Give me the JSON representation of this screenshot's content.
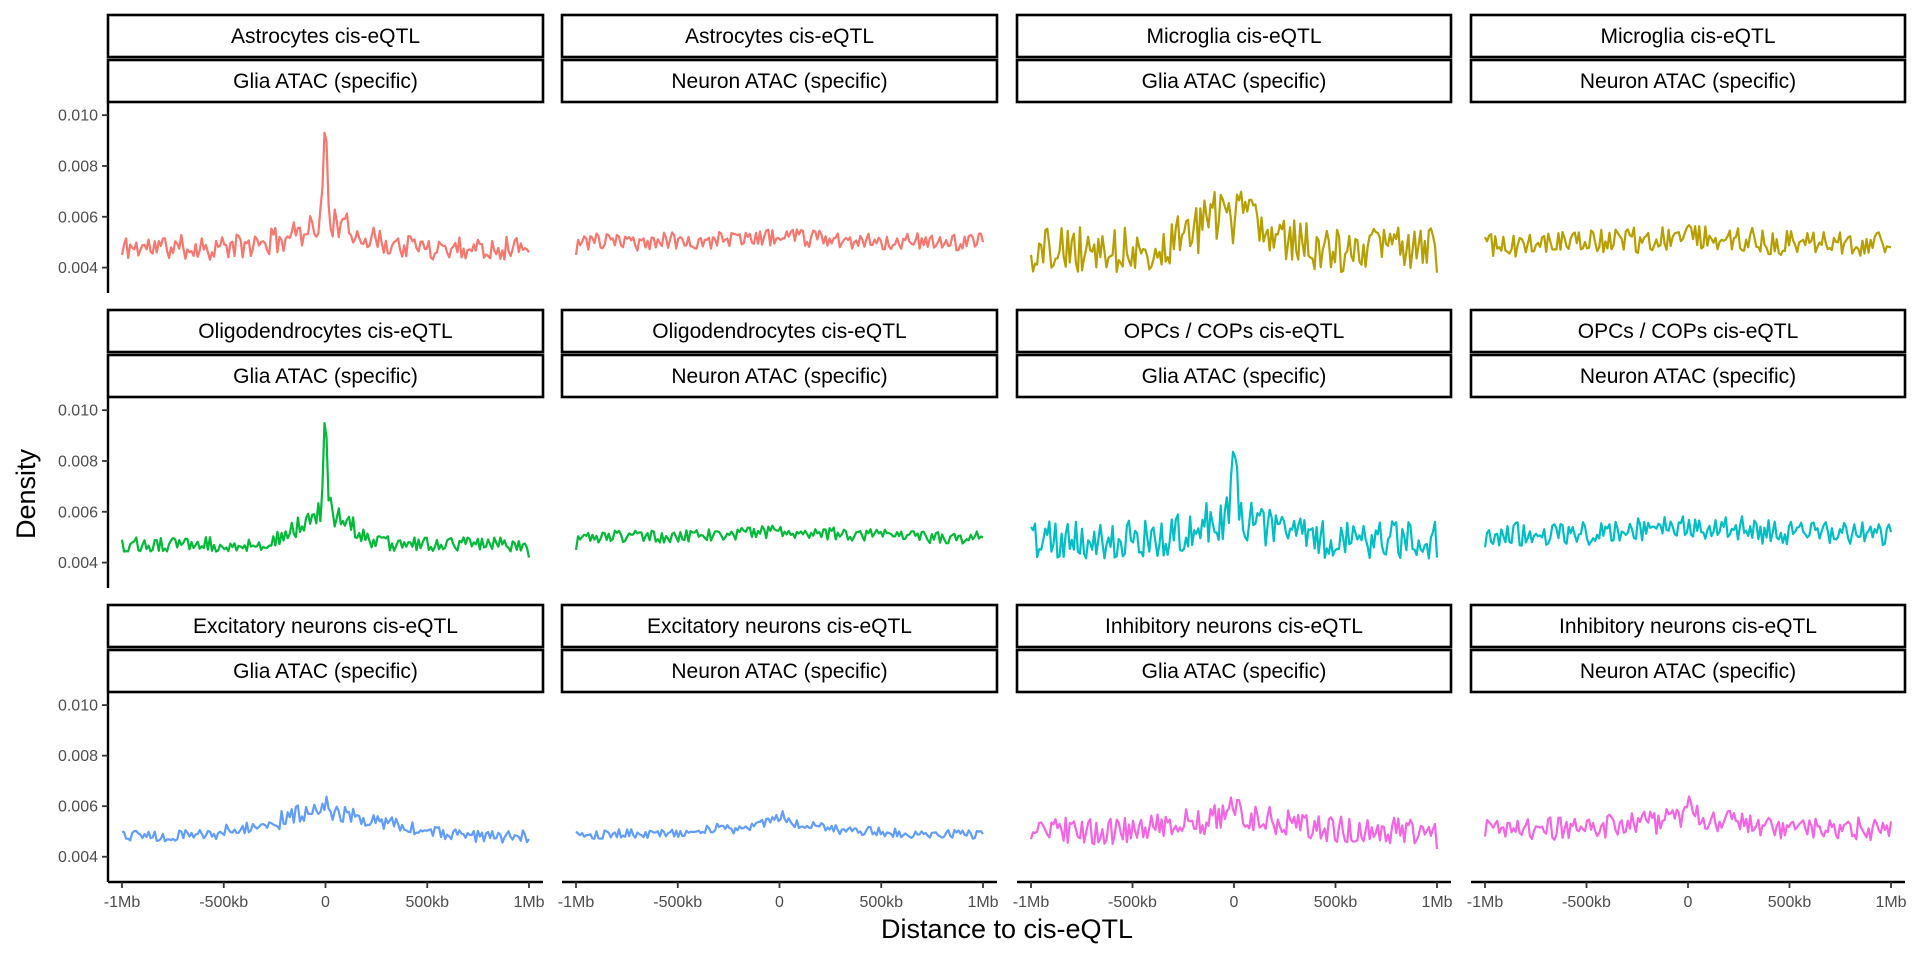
{
  "chart_data": {
    "type": "line",
    "layout": "facet_grid",
    "xlabel": "Distance to cis-eQTL",
    "ylabel": "Density",
    "xlim": [
      -1000000,
      1000000
    ],
    "ylim": [
      0.003,
      0.0104
    ],
    "x_ticks": [
      {
        "value": -1000000,
        "label": "-1Mb"
      },
      {
        "value": -500000,
        "label": "-500kb"
      },
      {
        "value": 0,
        "label": "0"
      },
      {
        "value": 500000,
        "label": "500kb"
      },
      {
        "value": 1000000,
        "label": "1Mb"
      }
    ],
    "y_ticks": [
      {
        "value": 0.004,
        "label": "0.004"
      },
      {
        "value": 0.006,
        "label": "0.006"
      },
      {
        "value": 0.008,
        "label": "0.008"
      },
      {
        "value": 0.01,
        "label": "0.010"
      }
    ],
    "colors": {
      "Astrocytes": "#F8766D",
      "Microglia": "#B79F00",
      "Oligodendrocytes": "#00BA38",
      "OPCs / COPs": "#00BFC4",
      "Excitatory neurons": "#619CFF",
      "Inhibitory neurons": "#F564E3"
    },
    "panels": [
      {
        "row": 0,
        "col": 0,
        "strip_top": "Astrocytes cis-eQTL",
        "strip_bottom": "Glia ATAC (specific)",
        "color_key": "Astrocytes",
        "baseline": 0.0048,
        "noise": 0.0005,
        "peak": 0.0037,
        "peak_width": 10000,
        "bump": 0.0009,
        "bump_width": 160000,
        "start": 0.0045,
        "end": 0.0046,
        "seed": 11
      },
      {
        "row": 0,
        "col": 1,
        "strip_top": "Astrocytes cis-eQTL",
        "strip_bottom": "Neuron ATAC (specific)",
        "color_key": "Astrocytes",
        "baseline": 0.005,
        "noise": 0.00035,
        "peak": 0.0,
        "peak_width": 10000,
        "bump": 0.0002,
        "bump_width": 300000,
        "start": 0.0045,
        "end": 0.005,
        "seed": 23
      },
      {
        "row": 0,
        "col": 2,
        "strip_top": "Microglia cis-eQTL",
        "strip_bottom": "Glia ATAC (specific)",
        "color_key": "Microglia",
        "baseline": 0.0047,
        "noise": 0.0009,
        "peak": 0.0,
        "peak_width": 10000,
        "bump": 0.0015,
        "bump_width": 180000,
        "start": 0.0045,
        "end": 0.0038,
        "seed": 37
      },
      {
        "row": 0,
        "col": 3,
        "strip_top": "Microglia cis-eQTL",
        "strip_bottom": "Neuron ATAC (specific)",
        "color_key": "Microglia",
        "baseline": 0.0049,
        "noise": 0.0005,
        "peak": 0.0,
        "peak_width": 10000,
        "bump": 0.0003,
        "bump_width": 300000,
        "start": 0.0052,
        "end": 0.0048,
        "seed": 41
      },
      {
        "row": 1,
        "col": 0,
        "strip_top": "Oligodendrocytes cis-eQTL",
        "strip_bottom": "Glia ATAC (specific)",
        "color_key": "Oligodendrocytes",
        "baseline": 0.0047,
        "noise": 0.0003,
        "peak": 0.004,
        "peak_width": 9000,
        "bump": 0.0013,
        "bump_width": 120000,
        "start": 0.0049,
        "end": 0.0042,
        "seed": 53
      },
      {
        "row": 1,
        "col": 1,
        "strip_top": "Oligodendrocytes cis-eQTL",
        "strip_bottom": "Neuron ATAC (specific)",
        "color_key": "Oligodendrocytes",
        "baseline": 0.005,
        "noise": 0.00025,
        "peak": 0.0,
        "peak_width": 10000,
        "bump": 0.0002,
        "bump_width": 300000,
        "start": 0.0045,
        "end": 0.005,
        "seed": 67
      },
      {
        "row": 1,
        "col": 2,
        "strip_top": "OPCs / COPs cis-eQTL",
        "strip_bottom": "Glia ATAC (specific)",
        "color_key": "OPCs / COPs",
        "baseline": 0.0049,
        "noise": 0.00075,
        "peak": 0.003,
        "peak_width": 12000,
        "bump": 0.0008,
        "bump_width": 170000,
        "start": 0.0054,
        "end": 0.0042,
        "seed": 79
      },
      {
        "row": 1,
        "col": 3,
        "strip_top": "OPCs / COPs cis-eQTL",
        "strip_bottom": "Neuron ATAC (specific)",
        "color_key": "OPCs / COPs",
        "baseline": 0.0051,
        "noise": 0.0005,
        "peak": 0.0,
        "peak_width": 10000,
        "bump": 0.0003,
        "bump_width": 300000,
        "start": 0.0046,
        "end": 0.0052,
        "seed": 83
      },
      {
        "row": 2,
        "col": 0,
        "strip_top": "Excitatory neurons cis-eQTL",
        "strip_bottom": "Glia ATAC (specific)",
        "color_key": "Excitatory neurons",
        "baseline": 0.0048,
        "noise": 0.00025,
        "peak": 0.0003,
        "peak_width": 20000,
        "bump": 0.0009,
        "bump_width": 280000,
        "start": 0.005,
        "end": 0.0047,
        "seed": 97
      },
      {
        "row": 2,
        "col": 1,
        "strip_top": "Excitatory neurons cis-eQTL",
        "strip_bottom": "Neuron ATAC (specific)",
        "color_key": "Excitatory neurons",
        "baseline": 0.0049,
        "noise": 0.0002,
        "peak": 0.0003,
        "peak_width": 30000,
        "bump": 0.0004,
        "bump_width": 250000,
        "start": 0.005,
        "end": 0.0049,
        "seed": 101
      },
      {
        "row": 2,
        "col": 2,
        "strip_top": "Inhibitory neurons cis-eQTL",
        "strip_bottom": "Glia ATAC (specific)",
        "color_key": "Inhibitory neurons",
        "baseline": 0.005,
        "noise": 0.00055,
        "peak": 0.0004,
        "peak_width": 15000,
        "bump": 0.0006,
        "bump_width": 250000,
        "start": 0.0047,
        "end": 0.0043,
        "seed": 113
      },
      {
        "row": 2,
        "col": 3,
        "strip_top": "Inhibitory neurons cis-eQTL",
        "strip_bottom": "Neuron ATAC (specific)",
        "color_key": "Inhibitory neurons",
        "baseline": 0.0051,
        "noise": 0.00045,
        "peak": 0.0004,
        "peak_width": 15000,
        "bump": 0.0004,
        "bump_width": 250000,
        "start": 0.0048,
        "end": 0.0054,
        "seed": 127
      }
    ]
  }
}
